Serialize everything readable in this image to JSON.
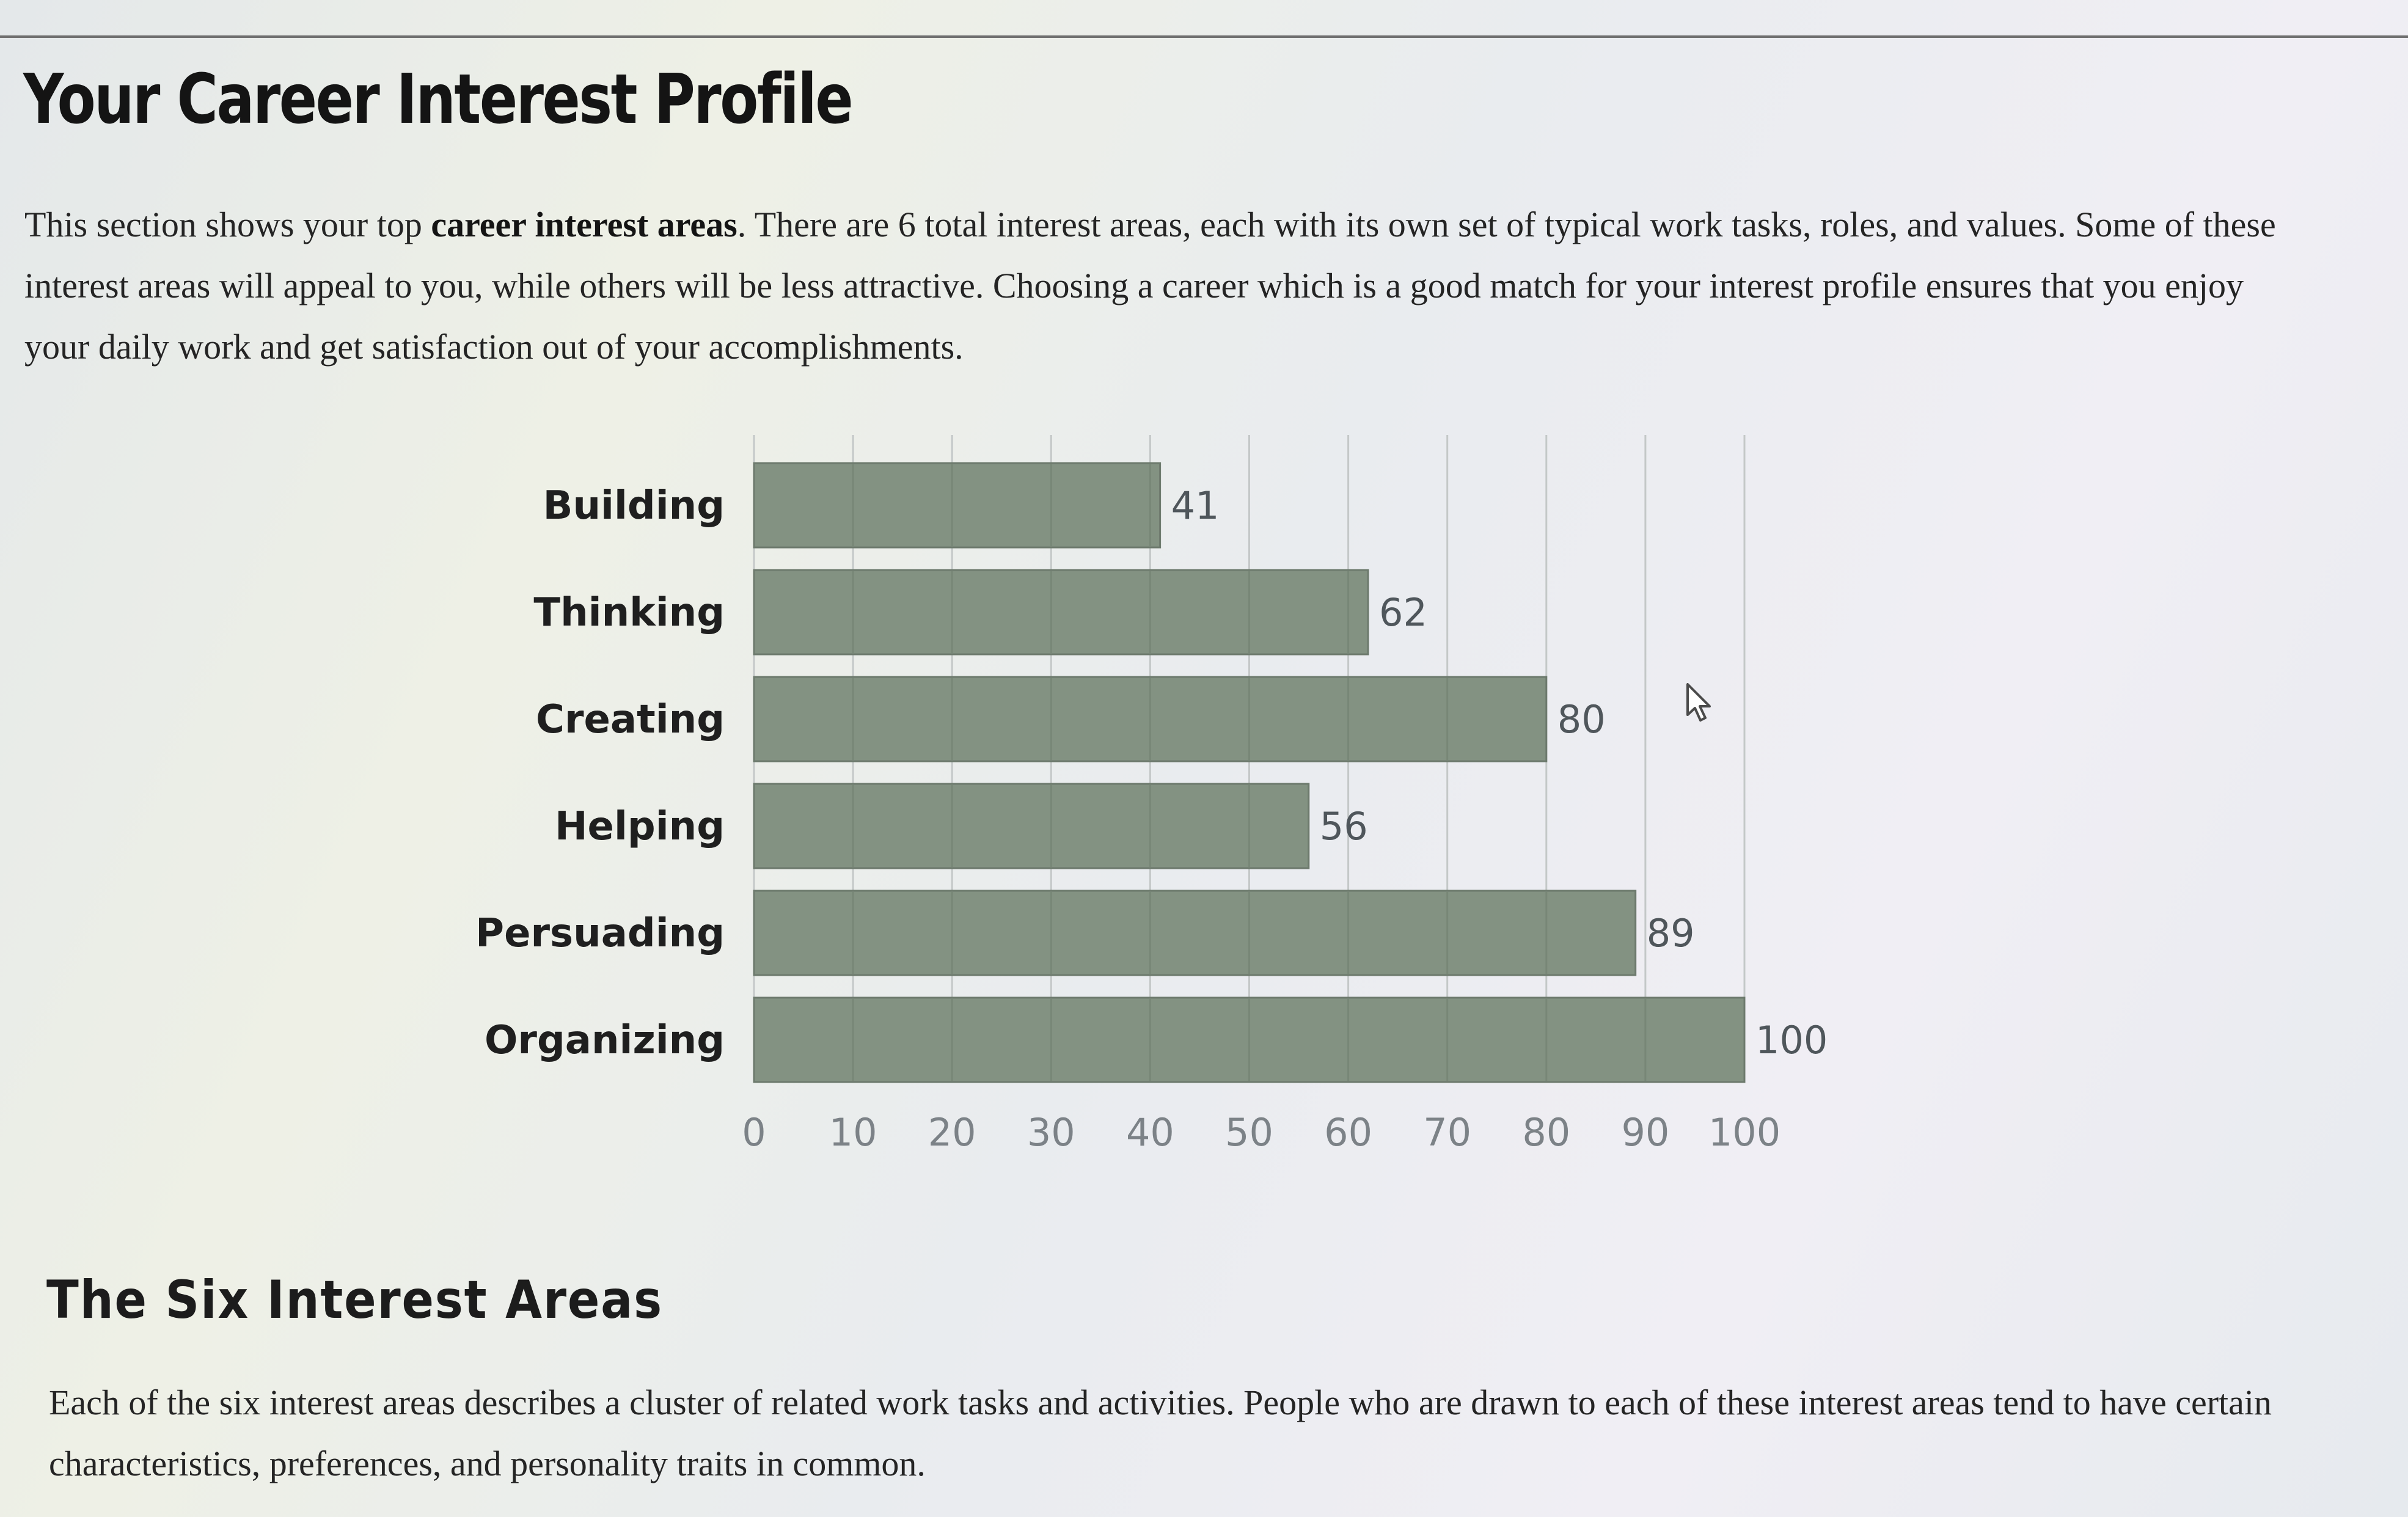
{
  "page": {
    "title": "Your Career Interest Profile",
    "intro": {
      "before": "This section shows your top ",
      "emphasis": "career interest areas",
      "after": ". There are 6 total interest areas, each with its own set of typical work tasks, roles, and values. Some of these interest areas will appeal to you, while others will be less attractive. Choosing a career which is a good match for your interest profile ensures that you enjoy your daily work and get satisfaction out of your accomplishments."
    }
  },
  "chart_data": {
    "type": "bar",
    "orientation": "horizontal",
    "categories": [
      "Building",
      "Thinking",
      "Creating",
      "Helping",
      "Persuading",
      "Organizing"
    ],
    "values": [
      41,
      62,
      80,
      56,
      89,
      100
    ],
    "xlim": [
      0,
      100
    ],
    "xticks": [
      0,
      10,
      20,
      30,
      40,
      50,
      60,
      70,
      80,
      90,
      100
    ],
    "grid": true,
    "data_labels": true,
    "bar_color": "#839282"
  },
  "section": {
    "title": "The Six Interest Areas",
    "body": "Each of the six interest areas describes a cluster of related work tasks and activities. People who are drawn to each of these interest areas tend to have certain characteristics, preferences, and personality traits in common."
  },
  "cursor": {
    "icon": "arrow-pointer-icon"
  }
}
